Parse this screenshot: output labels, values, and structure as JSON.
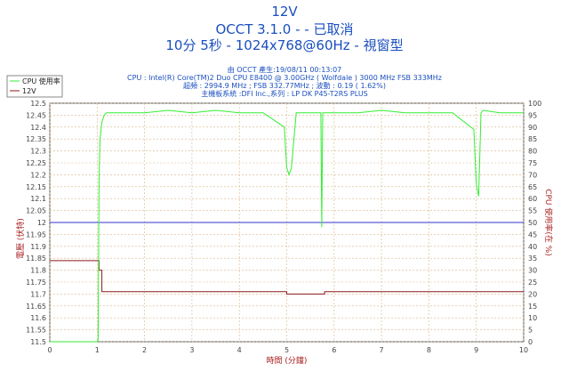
{
  "header": {
    "line1": "12V",
    "line2": "OCCT 3.1.0 -  - 已取消",
    "line3": "10分 5秒 - 1024x768@60Hz - 視窗型"
  },
  "info": {
    "line1": "由 OCCT 產生:19/08/11 00:13:07",
    "line2": "CPU : Intel(R) Core(TM)2 Duo CPU E8400 @ 3.00GHz ( Wolfdale ) 3000 MHz FSB 333MHz",
    "line3": "超頻 : 2994.9 MHz ; FSB 332.77MHz ; 波動 : 0.19 ( 1.62%)",
    "line4": "主機板系統 :DFI Inc.,系列 : LP DK P45-T2RS PLUS"
  },
  "colors": {
    "cpu_line": "#33ee33",
    "volt_line": "#8b1a1a",
    "ref_line": "#3333cc",
    "grid": "#d9b48a",
    "title": "#1a4fbf",
    "axis_label": "#aa2222"
  },
  "chart_data": {
    "type": "line",
    "xlabel": "時間 (分鐘)",
    "ylabel_left": "電壓 (伏特)",
    "ylabel_right": "CPU 使用率(在 %)",
    "xlim": [
      0,
      10
    ],
    "ylim_left": [
      11.5,
      12.5
    ],
    "ylim_right": [
      0,
      100
    ],
    "x_ticks": [
      "0",
      "1",
      "2",
      "3",
      "4",
      "5",
      "6",
      "7",
      "8",
      "9",
      "10"
    ],
    "y_left_ticks": [
      "11.5",
      "11.55",
      "11.6",
      "11.65",
      "11.7",
      "11.75",
      "11.8",
      "11.85",
      "11.9",
      "11.95",
      "12",
      "12.05",
      "12.1",
      "12.15",
      "12.2",
      "12.25",
      "12.3",
      "12.35",
      "12.4",
      "12.45",
      "12.5"
    ],
    "y_right_ticks": [
      "0",
      "5",
      "10",
      "15",
      "20",
      "25",
      "30",
      "35",
      "40",
      "45",
      "50",
      "55",
      "60",
      "65",
      "70",
      "75",
      "80",
      "85",
      "90",
      "95",
      "100"
    ],
    "grid": true,
    "legend_position": "top-left",
    "reference_line": {
      "value": 12.0,
      "axis": "left"
    },
    "series": [
      {
        "name": "CPU 使用率",
        "axis": "right",
        "x": [
          0,
          1.0,
          1.02,
          1.04,
          1.06,
          1.1,
          1.15,
          1.2,
          1.3,
          1.5,
          2,
          2.5,
          3,
          3.5,
          4,
          4.5,
          4.95,
          5.0,
          5.05,
          5.1,
          5.2,
          5.5,
          5.72,
          5.74,
          5.76,
          6,
          6.5,
          7,
          7.5,
          8,
          8.5,
          8.95,
          9.0,
          9.05,
          9.1,
          9.15,
          9.5,
          10
        ],
        "values": [
          0,
          0,
          1,
          68,
          85,
          92,
          95,
          96,
          96,
          96,
          96,
          97,
          96,
          97,
          96,
          96,
          90,
          73,
          70,
          73,
          96,
          96,
          96,
          48,
          96,
          96,
          96,
          97,
          96,
          96,
          96,
          89,
          66,
          61,
          96,
          97,
          96,
          96
        ]
      },
      {
        "name": "12V",
        "axis": "left",
        "x": [
          0,
          1.0,
          1.04,
          1.1,
          2,
          2.4,
          2.5,
          3,
          4,
          4.5,
          5,
          5.1,
          5.3,
          5.8,
          6.5,
          7,
          7.5,
          8,
          8.5,
          9,
          9.5,
          10
        ],
        "values": [
          11.84,
          11.84,
          11.8,
          11.71,
          11.71,
          11.71,
          11.71,
          11.71,
          11.71,
          11.71,
          11.7,
          11.7,
          11.7,
          11.71,
          11.71,
          11.71,
          11.71,
          11.71,
          11.71,
          11.71,
          11.71,
          11.71
        ]
      }
    ]
  }
}
